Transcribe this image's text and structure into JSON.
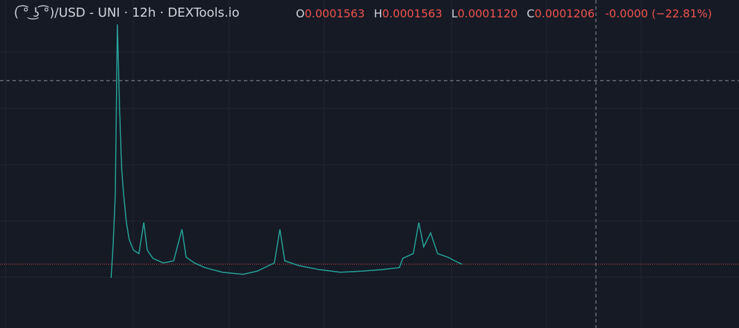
{
  "chart_data": {
    "type": "line",
    "title": "( ͡° ͜ʖ ͡°)/USD - UNI · 12h · DEXTools.io",
    "ohlc": {
      "o_label": "O",
      "o": "0.0001563",
      "h_label": "H",
      "h": "0.0001563",
      "l_label": "L",
      "l": "0.0001120",
      "c_label": "C",
      "c": "0.0001206",
      "change": "-0.0000 (−22.81%)"
    },
    "x": [
      0,
      1.2,
      2.4,
      3.6,
      4.8,
      6,
      7.2,
      8.8,
      10.4,
      12.8,
      16,
      18.8,
      20.8,
      24,
      30,
      36,
      40.8,
      43.2,
      48,
      54,
      64,
      76,
      84,
      94,
      97.2,
      100,
      108,
      120,
      132,
      144,
      156,
      166,
      168,
      174,
      177.2,
      180,
      184,
      188,
      194,
      198,
      202
    ],
    "series": [
      {
        "color": "#26a69a",
        "values": [
          9.4e-05,
          0.000161,
          0.000255,
          0.000584,
          0.000429,
          0.000309,
          0.000255,
          0.000201,
          0.000168,
          0.000148,
          0.000141,
          0.000201,
          0.000148,
          0.000132,
          0.000123,
          0.000127,
          0.000188,
          0.000134,
          0.000123,
          0.000114,
          0.000105,
          0.000101,
          0.000107,
          0.000123,
          0.000188,
          0.000127,
          0.000118,
          0.00011,
          0.000105,
          0.000107,
          0.00011,
          0.000114,
          0.000132,
          0.000141,
          0.000201,
          0.000154,
          0.000181,
          0.000141,
          0.000134,
          0.000127,
          0.0001206
        ]
      }
    ],
    "last_price": 0.0001206,
    "last_price_color": "#ef5350",
    "xlim": [
      -64,
      361.6
    ],
    "ylim": [
      0,
      0.0006
    ]
  }
}
